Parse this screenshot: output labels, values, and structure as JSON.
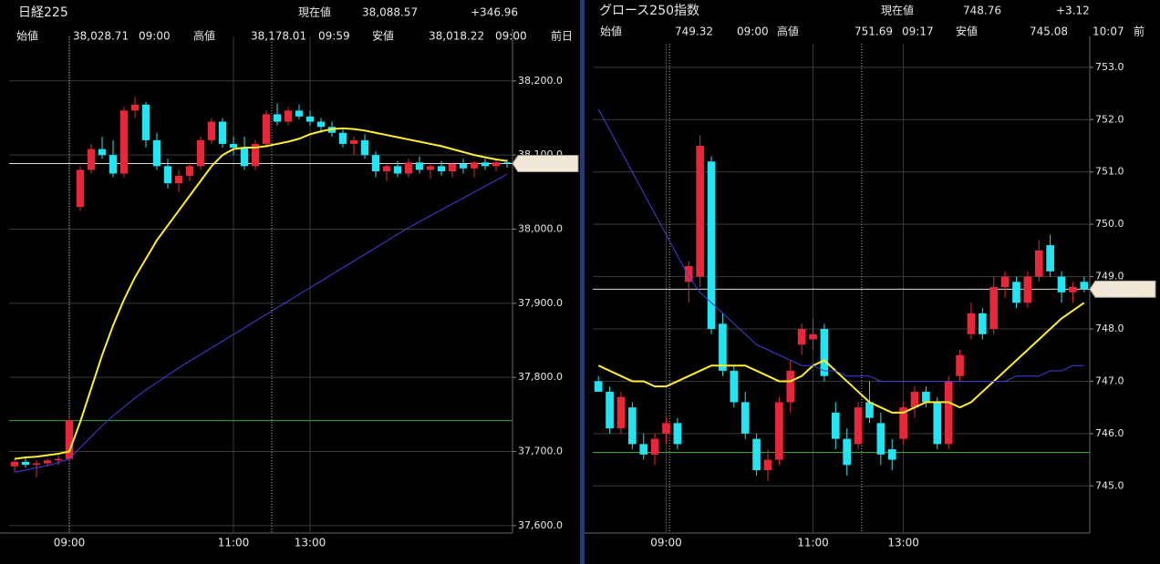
{
  "chart_data": [
    {
      "type": "candlestick",
      "header": {
        "title": "日経225",
        "current_label": "現在値",
        "current": "38,088.57",
        "change": "+346.96",
        "open_label": "始値",
        "open": "38,028.71",
        "open_time": "09:00",
        "high_label": "高値",
        "high": "38,178.01",
        "high_time": "09:59",
        "low_label": "安値",
        "low": "38,018.22",
        "low_time": "09:00",
        "prev_label": "前日"
      },
      "categories": [
        null,
        null,
        null,
        null,
        null,
        "09:00",
        null,
        null,
        null,
        null,
        null,
        null,
        null,
        null,
        null,
        null,
        null,
        null,
        null,
        null,
        "11:00",
        null,
        null,
        null,
        null,
        null,
        null,
        "13:00",
        null,
        null,
        null,
        null,
        null,
        null,
        null,
        null,
        null,
        null,
        null,
        null,
        null,
        null,
        null,
        null,
        null,
        null
      ],
      "open": [
        37680,
        37686,
        37682,
        37684,
        37688,
        37690,
        38030,
        38080,
        38108,
        38100,
        38075,
        38160,
        38168,
        38120,
        38085,
        38062,
        38072,
        38085,
        38120,
        38145,
        38115,
        38110,
        38085,
        38115,
        38155,
        38145,
        38160,
        38152,
        38145,
        38138,
        38130,
        38115,
        38120,
        38100,
        38078,
        38085,
        38075,
        38090,
        38080,
        38085,
        38078,
        38088,
        38082,
        38090,
        38085,
        38090
      ],
      "high": [
        37690,
        37692,
        37688,
        37690,
        37695,
        37745,
        38085,
        38115,
        38125,
        38120,
        38165,
        38178,
        38172,
        38130,
        38095,
        38080,
        38090,
        38125,
        38150,
        38150,
        38125,
        38125,
        38120,
        38160,
        38170,
        38165,
        38168,
        38160,
        38150,
        38145,
        38135,
        38125,
        38128,
        38105,
        38090,
        38092,
        38095,
        38098,
        38090,
        38092,
        38090,
        38095,
        38092,
        38095,
        38093,
        38094
      ],
      "low": [
        37672,
        37678,
        37665,
        37680,
        37682,
        37688,
        38025,
        38075,
        38095,
        38070,
        38070,
        38150,
        38110,
        38080,
        38055,
        38050,
        38065,
        38080,
        38115,
        38110,
        38100,
        38080,
        38080,
        38110,
        38140,
        38140,
        38148,
        38140,
        38130,
        38125,
        38110,
        38100,
        38095,
        38070,
        38065,
        38070,
        38070,
        38075,
        38068,
        38072,
        38070,
        38075,
        38070,
        38080,
        38078,
        38083
      ],
      "close": [
        37686,
        37682,
        37684,
        37688,
        37690,
        37742,
        38080,
        38108,
        38100,
        38075,
        38160,
        38168,
        38120,
        38085,
        38062,
        38072,
        38085,
        38120,
        38145,
        38115,
        38110,
        38085,
        38115,
        38155,
        38145,
        38160,
        38152,
        38145,
        38138,
        38130,
        38115,
        38120,
        38100,
        38078,
        38085,
        38075,
        38090,
        38080,
        38085,
        38078,
        38088,
        38082,
        38090,
        38085,
        38090,
        38088.57
      ],
      "up_color": "#e8283a",
      "down_color": "#22e4f2",
      "moving_averages": [
        {
          "color": "#ffee33",
          "values": [
            37690,
            37692,
            37693,
            37695,
            37697,
            37700,
            37740,
            37785,
            37830,
            37870,
            37905,
            37935,
            37960,
            37985,
            38005,
            38025,
            38045,
            38065,
            38085,
            38100,
            38108,
            38110,
            38110,
            38112,
            38115,
            38118,
            38122,
            38128,
            38132,
            38135,
            38136,
            38135,
            38133,
            38130,
            38127,
            38124,
            38121,
            38118,
            38115,
            38112,
            38108,
            38104,
            38100,
            38097,
            38094,
            38092
          ]
        },
        {
          "color": "#4040e0",
          "values": [
            37672,
            37675,
            37678,
            37681,
            37685,
            37690,
            37705,
            37720,
            37735,
            37748,
            37760,
            37772,
            37783,
            37793,
            37803,
            37813,
            37822,
            37831,
            37840,
            37849,
            37858,
            37867,
            37876,
            37885,
            37894,
            37903,
            37912,
            37921,
            37930,
            37939,
            37948,
            37957,
            37966,
            37975,
            37984,
            37993,
            38002,
            38010,
            38018,
            38026,
            38034,
            38042,
            38050,
            38058,
            38066,
            38074
          ]
        }
      ],
      "previous_close": 37741.61,
      "previous_close_color": "#33aa33",
      "ylim": [
        37590,
        38260
      ],
      "yticks": [
        {
          "value": 37600,
          "label": "37,600.0"
        },
        {
          "value": 37700,
          "label": "37,700.0"
        },
        {
          "value": 37800,
          "label": "37,800.0"
        },
        {
          "value": 37900,
          "label": "37,900.0"
        },
        {
          "value": 38000,
          "label": "38,000.0"
        },
        {
          "value": 38100,
          "label": "38,100.0"
        },
        {
          "value": 38200,
          "label": "38,200.0"
        }
      ],
      "grid": true
    },
    {
      "type": "candlestick",
      "header": {
        "title": "グロース250指数",
        "current_label": "現在値",
        "current": "748.76",
        "change": "+3.12",
        "open_label": "始値",
        "open": "749.32",
        "open_time": "09:00",
        "high_label": "高値",
        "high": "751.69",
        "high_time": "09:17",
        "low_label": "安値",
        "low": "745.08",
        "low_time": "10:07",
        "prev_label": "前"
      },
      "categories": [
        null,
        null,
        null,
        null,
        null,
        null,
        "09:00",
        null,
        null,
        null,
        null,
        null,
        null,
        null,
        null,
        null,
        null,
        null,
        null,
        "11:00",
        null,
        null,
        null,
        null,
        null,
        null,
        null,
        "13:00",
        null,
        null,
        null,
        null,
        null,
        null,
        null,
        null,
        null,
        null,
        null,
        null,
        null,
        null,
        null,
        null
      ],
      "open": [
        747.0,
        746.8,
        746.1,
        746.5,
        745.8,
        745.6,
        746.0,
        746.2,
        748.9,
        749.0,
        751.2,
        748.1,
        747.2,
        746.6,
        745.9,
        745.3,
        745.5,
        746.6,
        747.7,
        747.8,
        748.0,
        746.4,
        745.9,
        745.8,
        746.6,
        746.2,
        745.7,
        745.9,
        746.5,
        746.8,
        746.6,
        745.8,
        747.1,
        747.9,
        748.3,
        748.0,
        748.8,
        748.9,
        748.5,
        749.0,
        749.6,
        749.0,
        748.7,
        748.9
      ],
      "high": [
        747.1,
        746.9,
        746.8,
        746.6,
        746.0,
        746.0,
        746.3,
        746.3,
        749.3,
        751.7,
        751.3,
        748.3,
        747.3,
        746.8,
        746.0,
        745.7,
        746.7,
        747.4,
        748.1,
        748.2,
        748.1,
        746.6,
        746.1,
        746.6,
        747.0,
        746.4,
        745.9,
        746.6,
        746.9,
        746.9,
        746.7,
        747.1,
        747.6,
        748.5,
        748.4,
        749.0,
        749.1,
        749.0,
        749.1,
        749.7,
        749.8,
        749.1,
        748.9,
        749.0
      ],
      "low": [
        746.8,
        746.0,
        746.0,
        745.7,
        745.5,
        745.4,
        745.8,
        745.7,
        748.5,
        748.8,
        747.9,
        747.1,
        746.5,
        745.9,
        745.2,
        745.1,
        745.4,
        746.4,
        747.5,
        747.6,
        747.0,
        745.7,
        745.2,
        745.7,
        746.2,
        745.4,
        745.3,
        745.8,
        746.3,
        746.5,
        745.7,
        745.7,
        747.0,
        747.8,
        747.8,
        747.9,
        748.6,
        748.4,
        748.4,
        748.9,
        749.0,
        748.5,
        748.5,
        748.7
      ],
      "close": [
        746.8,
        746.1,
        746.7,
        745.8,
        745.6,
        745.9,
        746.2,
        745.8,
        749.2,
        751.5,
        748.0,
        747.2,
        746.6,
        746.0,
        745.3,
        745.5,
        746.6,
        747.2,
        748.0,
        747.9,
        747.1,
        745.9,
        745.4,
        746.5,
        746.3,
        745.6,
        745.5,
        746.5,
        746.8,
        746.6,
        745.8,
        747.0,
        747.5,
        748.3,
        747.9,
        748.8,
        749.0,
        748.5,
        749.0,
        749.5,
        749.1,
        748.7,
        748.8,
        748.76
      ],
      "up_color": "#e8283a",
      "down_color": "#22e4f2",
      "moving_averages": [
        {
          "color": "#ffee33",
          "values": [
            747.3,
            747.2,
            747.1,
            747.0,
            747.0,
            746.9,
            746.9,
            747.0,
            747.1,
            747.2,
            747.3,
            747.3,
            747.3,
            747.3,
            747.2,
            747.1,
            747.0,
            747.0,
            747.1,
            747.3,
            747.4,
            747.2,
            747.0,
            746.8,
            746.6,
            746.5,
            746.4,
            746.4,
            746.5,
            746.6,
            746.6,
            746.6,
            746.5,
            746.6,
            746.8,
            747.0,
            747.2,
            747.4,
            747.6,
            747.8,
            748.0,
            748.2,
            748.35,
            748.5
          ]
        },
        {
          "color": "#4040e0",
          "values": [
            752.2,
            751.8,
            751.4,
            751.0,
            750.6,
            750.2,
            749.8,
            749.4,
            749.0,
            748.7,
            748.5,
            748.3,
            748.1,
            747.9,
            747.7,
            747.6,
            747.5,
            747.4,
            747.3,
            747.3,
            747.2,
            747.2,
            747.1,
            747.1,
            747.1,
            747.0,
            747.0,
            747.0,
            747.0,
            747.0,
            747.0,
            747.0,
            747.0,
            747.0,
            747.0,
            747.0,
            747.0,
            747.1,
            747.1,
            747.1,
            747.2,
            747.2,
            747.3,
            747.3
          ]
        }
      ],
      "previous_close": 745.64,
      "previous_close_color": "#33aa33",
      "ylim": [
        744.1,
        753.45
      ],
      "yticks": [
        {
          "value": 745.0,
          "label": "745.0"
        },
        {
          "value": 746.0,
          "label": "746.0"
        },
        {
          "value": 747.0,
          "label": "747.0"
        },
        {
          "value": 748.0,
          "label": "748.0"
        },
        {
          "value": 749.0,
          "label": "749.0"
        },
        {
          "value": 750.0,
          "label": "750.0"
        },
        {
          "value": 751.0,
          "label": "751.0"
        },
        {
          "value": 752.0,
          "label": "752.0"
        },
        {
          "value": 753.0,
          "label": "753.0"
        }
      ],
      "grid": true
    }
  ]
}
